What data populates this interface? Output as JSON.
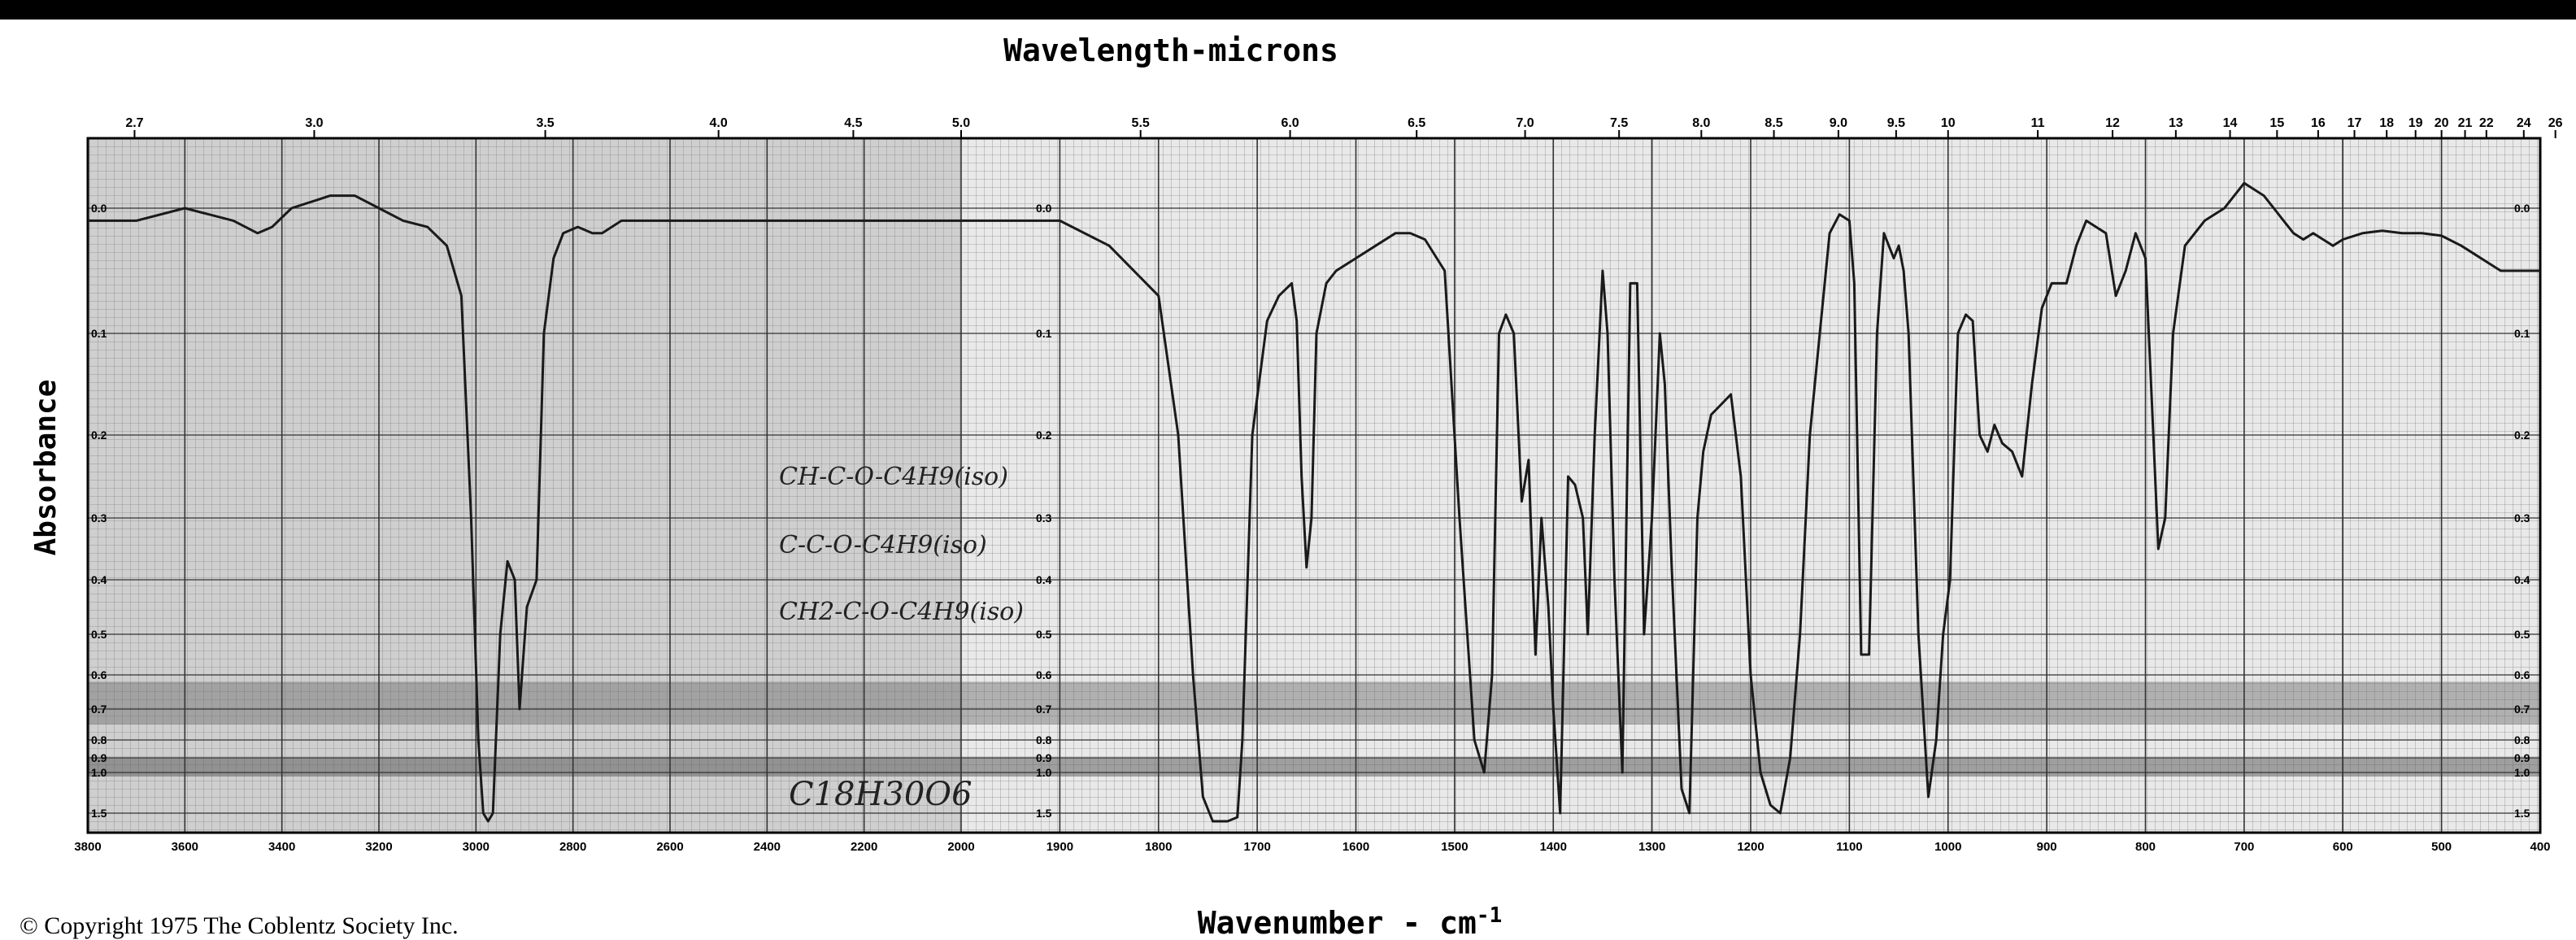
{
  "chart_data": {
    "type": "line",
    "title": "Wavelength-microns",
    "xlabel": "Wavenumber - cm",
    "xlabel_sup": "-1",
    "ylabel": "Absorbance",
    "x_axis": {
      "range": [
        3800,
        400
      ],
      "scale_change_at": 2000,
      "ticks": [
        3800,
        3600,
        3400,
        3200,
        3000,
        2800,
        2600,
        2400,
        2200,
        2000,
        1900,
        1800,
        1700,
        1600,
        1500,
        1400,
        1300,
        1200,
        1100,
        1000,
        900,
        800,
        700,
        600,
        500,
        400
      ],
      "tick_labels": [
        "3800",
        "3600",
        "3400",
        "3200",
        "3000",
        "2800",
        "2600",
        "2400",
        "2200",
        "2000",
        "1900",
        "1800",
        "1700",
        "1600",
        "1500",
        "1400",
        "1300",
        "1200",
        "1100",
        "1000",
        "900",
        "800",
        "700",
        "600",
        "500",
        "400"
      ]
    },
    "top_axis": {
      "labels": [
        "2.7",
        "3.0",
        "3.5",
        "4.0",
        "4.5",
        "5.0",
        "5.5",
        "6.0",
        "6.5",
        "7.0",
        "7.5",
        "8.0",
        "8.5",
        "9.0",
        "9.5",
        "10",
        "11",
        "12",
        "13",
        "14",
        "15",
        "16",
        "17",
        "18",
        "19",
        "20",
        "21",
        "22",
        "24",
        "26"
      ],
      "microns": [
        2.7,
        3.0,
        3.5,
        4.0,
        4.5,
        5.0,
        5.5,
        6.0,
        6.5,
        7.0,
        7.5,
        8.0,
        8.5,
        9.0,
        9.5,
        10,
        11,
        12,
        13,
        14,
        15,
        16,
        17,
        18,
        19,
        20,
        21,
        22,
        24,
        26
      ]
    },
    "y_axis": {
      "ticks": [
        0.0,
        0.1,
        0.2,
        0.3,
        0.4,
        0.5,
        0.6,
        0.7,
        0.8,
        0.9,
        1.0,
        1.5
      ],
      "tick_labels": [
        "0.0",
        "0.1",
        "0.2",
        "0.3",
        "0.4",
        "0.5",
        "0.6",
        "0.7",
        "0.8",
        "0.9",
        "1.0",
        "1.5"
      ]
    },
    "grid": true,
    "series": [
      {
        "color": "#1a1a1a",
        "points": [
          [
            3800,
            0.01
          ],
          [
            3700,
            0.01
          ],
          [
            3600,
            0.0
          ],
          [
            3500,
            0.01
          ],
          [
            3450,
            0.02
          ],
          [
            3420,
            0.015
          ],
          [
            3380,
            0.0
          ],
          [
            3300,
            -0.01
          ],
          [
            3250,
            -0.01
          ],
          [
            3200,
            0.0
          ],
          [
            3150,
            0.01
          ],
          [
            3100,
            0.015
          ],
          [
            3060,
            0.03
          ],
          [
            3030,
            0.07
          ],
          [
            3010,
            0.3
          ],
          [
            2995,
            0.8
          ],
          [
            2985,
            1.5
          ],
          [
            2975,
            1.6
          ],
          [
            2965,
            1.5
          ],
          [
            2950,
            0.5
          ],
          [
            2935,
            0.37
          ],
          [
            2920,
            0.4
          ],
          [
            2910,
            0.7
          ],
          [
            2895,
            0.45
          ],
          [
            2875,
            0.4
          ],
          [
            2860,
            0.1
          ],
          [
            2840,
            0.04
          ],
          [
            2820,
            0.02
          ],
          [
            2790,
            0.015
          ],
          [
            2760,
            0.02
          ],
          [
            2740,
            0.02
          ],
          [
            2700,
            0.01
          ],
          [
            2600,
            0.01
          ],
          [
            2400,
            0.01
          ],
          [
            2200,
            0.01
          ],
          [
            2000,
            0.01
          ],
          [
            1900,
            0.01
          ],
          [
            1850,
            0.03
          ],
          [
            1800,
            0.07
          ],
          [
            1780,
            0.2
          ],
          [
            1765,
            0.6
          ],
          [
            1755,
            1.3
          ],
          [
            1745,
            1.6
          ],
          [
            1730,
            1.6
          ],
          [
            1720,
            1.55
          ],
          [
            1715,
            0.8
          ],
          [
            1705,
            0.2
          ],
          [
            1690,
            0.09
          ],
          [
            1678,
            0.07
          ],
          [
            1665,
            0.06
          ],
          [
            1660,
            0.09
          ],
          [
            1655,
            0.25
          ],
          [
            1650,
            0.38
          ],
          [
            1645,
            0.3
          ],
          [
            1640,
            0.1
          ],
          [
            1630,
            0.06
          ],
          [
            1620,
            0.05
          ],
          [
            1600,
            0.04
          ],
          [
            1580,
            0.03
          ],
          [
            1560,
            0.02
          ],
          [
            1545,
            0.02
          ],
          [
            1530,
            0.025
          ],
          [
            1510,
            0.05
          ],
          [
            1495,
            0.3
          ],
          [
            1480,
            0.8
          ],
          [
            1470,
            1.0
          ],
          [
            1462,
            0.6
          ],
          [
            1455,
            0.1
          ],
          [
            1448,
            0.085
          ],
          [
            1440,
            0.1
          ],
          [
            1432,
            0.28
          ],
          [
            1425,
            0.23
          ],
          [
            1418,
            0.55
          ],
          [
            1412,
            0.3
          ],
          [
            1405,
            0.45
          ],
          [
            1400,
            0.7
          ],
          [
            1393,
            1.5
          ],
          [
            1385,
            0.25
          ],
          [
            1378,
            0.26
          ],
          [
            1370,
            0.3
          ],
          [
            1365,
            0.5
          ],
          [
            1358,
            0.2
          ],
          [
            1350,
            0.05
          ],
          [
            1345,
            0.1
          ],
          [
            1338,
            0.4
          ],
          [
            1330,
            1.0
          ],
          [
            1322,
            0.06
          ],
          [
            1315,
            0.06
          ],
          [
            1308,
            0.5
          ],
          [
            1300,
            0.3
          ],
          [
            1292,
            0.1
          ],
          [
            1287,
            0.15
          ],
          [
            1280,
            0.38
          ],
          [
            1270,
            1.2
          ],
          [
            1262,
            1.5
          ],
          [
            1254,
            0.3
          ],
          [
            1248,
            0.22
          ],
          [
            1240,
            0.18
          ],
          [
            1230,
            0.17
          ],
          [
            1220,
            0.16
          ],
          [
            1210,
            0.25
          ],
          [
            1200,
            0.6
          ],
          [
            1190,
            1.0
          ],
          [
            1180,
            1.4
          ],
          [
            1170,
            1.5
          ],
          [
            1160,
            0.9
          ],
          [
            1150,
            0.5
          ],
          [
            1140,
            0.2
          ],
          [
            1130,
            0.1
          ],
          [
            1120,
            0.02
          ],
          [
            1110,
            0.005
          ],
          [
            1100,
            0.01
          ],
          [
            1095,
            0.06
          ],
          [
            1088,
            0.55
          ],
          [
            1080,
            0.55
          ],
          [
            1072,
            0.1
          ],
          [
            1065,
            0.02
          ],
          [
            1060,
            0.03
          ],
          [
            1055,
            0.04
          ],
          [
            1050,
            0.03
          ],
          [
            1045,
            0.05
          ],
          [
            1040,
            0.1
          ],
          [
            1030,
            0.5
          ],
          [
            1020,
            1.3
          ],
          [
            1012,
            0.8
          ],
          [
            1005,
            0.5
          ],
          [
            998,
            0.4
          ],
          [
            990,
            0.1
          ],
          [
            982,
            0.085
          ],
          [
            975,
            0.09
          ],
          [
            968,
            0.2
          ],
          [
            960,
            0.22
          ],
          [
            953,
            0.19
          ],
          [
            945,
            0.21
          ],
          [
            935,
            0.22
          ],
          [
            925,
            0.25
          ],
          [
            915,
            0.15
          ],
          [
            905,
            0.08
          ],
          [
            895,
            0.06
          ],
          [
            880,
            0.06
          ],
          [
            870,
            0.03
          ],
          [
            860,
            0.01
          ],
          [
            850,
            0.015
          ],
          [
            840,
            0.02
          ],
          [
            830,
            0.07
          ],
          [
            820,
            0.05
          ],
          [
            810,
            0.02
          ],
          [
            800,
            0.04
          ],
          [
            792,
            0.2
          ],
          [
            787,
            0.35
          ],
          [
            780,
            0.3
          ],
          [
            772,
            0.1
          ],
          [
            760,
            0.03
          ],
          [
            740,
            0.01
          ],
          [
            720,
            0.0
          ],
          [
            700,
            -0.02
          ],
          [
            690,
            -0.015
          ],
          [
            680,
            -0.01
          ],
          [
            670,
            0.0
          ],
          [
            660,
            0.01
          ],
          [
            650,
            0.02
          ],
          [
            640,
            0.025
          ],
          [
            630,
            0.02
          ],
          [
            620,
            0.025
          ],
          [
            610,
            0.03
          ],
          [
            600,
            0.025
          ],
          [
            580,
            0.02
          ],
          [
            560,
            0.018
          ],
          [
            540,
            0.02
          ],
          [
            520,
            0.02
          ],
          [
            500,
            0.022
          ],
          [
            480,
            0.03
          ],
          [
            460,
            0.04
          ],
          [
            440,
            0.05
          ],
          [
            420,
            0.05
          ],
          [
            400,
            0.05
          ]
        ]
      }
    ],
    "annotations": [
      {
        "text": "CH-C-O-C4H9(iso)",
        "kind": "handwritten"
      },
      {
        "text": "C-C-O-C4H9(iso)",
        "kind": "handwritten"
      },
      {
        "text": "CH2-C-O-C4H9(iso)",
        "kind": "handwritten"
      },
      {
        "text": "C18H30O6",
        "kind": "handwritten"
      }
    ]
  },
  "copyright": "© Copyright 1975  The Coblentz Society  Inc."
}
